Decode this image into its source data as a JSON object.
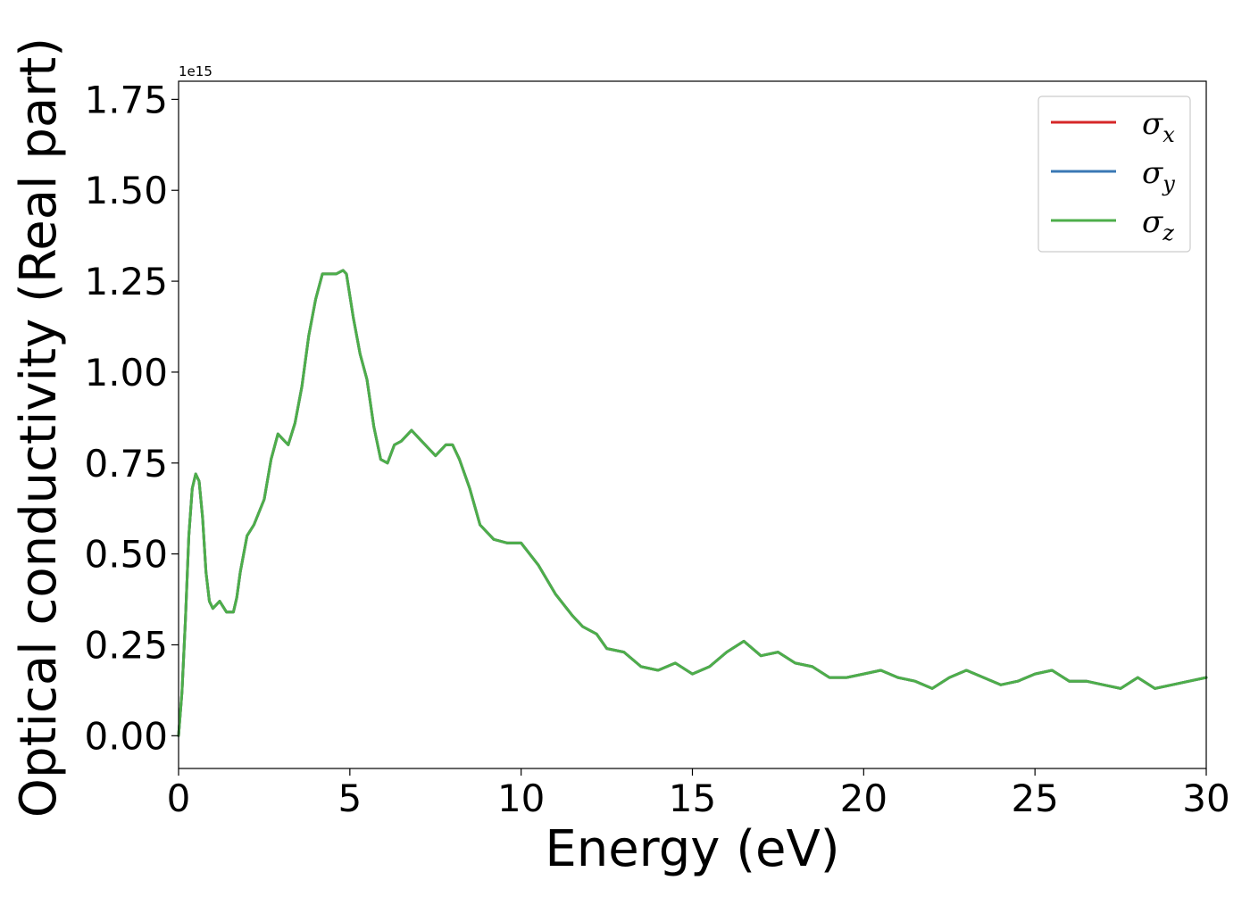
{
  "chart_data": {
    "type": "line",
    "xlabel": "Energy (eV)",
    "ylabel": "Optical conductivity (Real part)",
    "y_offset_label": "1e15",
    "xlim": [
      0,
      30
    ],
    "ylim": [
      -0.09,
      1.8
    ],
    "x_ticks": [
      0,
      5,
      10,
      15,
      20,
      25,
      30
    ],
    "x_tick_labels": [
      "0",
      "5",
      "10",
      "15",
      "20",
      "25",
      "30"
    ],
    "y_ticks": [
      0.0,
      0.25,
      0.5,
      0.75,
      1.0,
      1.25,
      1.5,
      1.75
    ],
    "y_tick_labels": [
      "0.00",
      "0.25",
      "0.50",
      "0.75",
      "1.00",
      "1.25",
      "1.50",
      "1.75"
    ],
    "grid": false,
    "legend_position": "top-right",
    "legend": [
      {
        "base": "σ",
        "sub": "x",
        "color": "#d62728"
      },
      {
        "base": "σ",
        "sub": "y",
        "color": "#3a78b4"
      },
      {
        "base": "σ",
        "sub": "z",
        "color": "#4dae4a"
      }
    ],
    "x": [
      0.0,
      0.1,
      0.2,
      0.3,
      0.4,
      0.5,
      0.6,
      0.7,
      0.8,
      0.9,
      1.0,
      1.2,
      1.4,
      1.6,
      1.7,
      1.8,
      2.0,
      2.2,
      2.5,
      2.7,
      2.9,
      3.0,
      3.2,
      3.4,
      3.6,
      3.8,
      4.0,
      4.2,
      4.4,
      4.6,
      4.8,
      4.9,
      5.1,
      5.3,
      5.5,
      5.7,
      5.9,
      6.1,
      6.3,
      6.5,
      6.7,
      6.8,
      7.0,
      7.3,
      7.5,
      7.8,
      8.0,
      8.2,
      8.5,
      8.8,
      9.2,
      9.6,
      10.0,
      10.5,
      11.0,
      11.5,
      11.8,
      12.2,
      12.5,
      13.0,
      13.5,
      14.0,
      14.5,
      15.0,
      15.5,
      16.0,
      16.5,
      17.0,
      17.5,
      18.0,
      18.5,
      19.0,
      19.5,
      20.0,
      20.5,
      21.0,
      21.5,
      22.0,
      22.5,
      23.0,
      23.5,
      24.0,
      24.5,
      25.0,
      25.5,
      26.0,
      26.5,
      27.0,
      27.5,
      28.0,
      28.5,
      29.0,
      29.5,
      30.0
    ],
    "series": [
      {
        "name": "σx",
        "color": "#d62728",
        "values": [
          0.0,
          0.12,
          0.32,
          0.55,
          0.68,
          0.72,
          0.7,
          0.6,
          0.45,
          0.37,
          0.35,
          0.37,
          0.34,
          0.34,
          0.38,
          0.45,
          0.55,
          0.58,
          0.65,
          0.76,
          0.83,
          0.82,
          0.8,
          0.86,
          0.96,
          1.1,
          1.2,
          1.27,
          1.27,
          1.27,
          1.28,
          1.27,
          1.15,
          1.05,
          0.98,
          0.85,
          0.76,
          0.75,
          0.8,
          0.81,
          0.83,
          0.84,
          0.82,
          0.79,
          0.77,
          0.8,
          0.8,
          0.76,
          0.68,
          0.58,
          0.54,
          0.53,
          0.53,
          0.47,
          0.39,
          0.33,
          0.3,
          0.28,
          0.24,
          0.23,
          0.19,
          0.18,
          0.2,
          0.17,
          0.19,
          0.23,
          0.26,
          0.22,
          0.23,
          0.2,
          0.19,
          0.16,
          0.16,
          0.17,
          0.18,
          0.16,
          0.15,
          0.13,
          0.16,
          0.18,
          0.16,
          0.14,
          0.15,
          0.17,
          0.18,
          0.15,
          0.15,
          0.14,
          0.13,
          0.16,
          0.13,
          0.14,
          0.15,
          0.16
        ]
      },
      {
        "name": "σy",
        "color": "#3a78b4",
        "values": [
          0.0,
          0.12,
          0.32,
          0.55,
          0.68,
          0.72,
          0.7,
          0.6,
          0.45,
          0.37,
          0.35,
          0.37,
          0.34,
          0.34,
          0.38,
          0.45,
          0.55,
          0.58,
          0.65,
          0.76,
          0.83,
          0.82,
          0.8,
          0.86,
          0.96,
          1.1,
          1.2,
          1.27,
          1.27,
          1.27,
          1.28,
          1.27,
          1.15,
          1.05,
          0.98,
          0.85,
          0.76,
          0.75,
          0.8,
          0.81,
          0.83,
          0.84,
          0.82,
          0.79,
          0.77,
          0.8,
          0.8,
          0.76,
          0.68,
          0.58,
          0.54,
          0.53,
          0.53,
          0.47,
          0.39,
          0.33,
          0.3,
          0.28,
          0.24,
          0.23,
          0.19,
          0.18,
          0.2,
          0.17,
          0.19,
          0.23,
          0.26,
          0.22,
          0.23,
          0.2,
          0.19,
          0.16,
          0.16,
          0.17,
          0.18,
          0.16,
          0.15,
          0.13,
          0.16,
          0.18,
          0.16,
          0.14,
          0.15,
          0.17,
          0.18,
          0.15,
          0.15,
          0.14,
          0.13,
          0.16,
          0.13,
          0.14,
          0.15,
          0.16
        ]
      },
      {
        "name": "σz",
        "color": "#4dae4a",
        "values": [
          0.0,
          0.12,
          0.32,
          0.55,
          0.68,
          0.72,
          0.7,
          0.6,
          0.45,
          0.37,
          0.35,
          0.37,
          0.34,
          0.34,
          0.38,
          0.45,
          0.55,
          0.58,
          0.65,
          0.76,
          0.83,
          0.82,
          0.8,
          0.86,
          0.96,
          1.1,
          1.2,
          1.27,
          1.27,
          1.27,
          1.28,
          1.27,
          1.15,
          1.05,
          0.98,
          0.85,
          0.76,
          0.75,
          0.8,
          0.81,
          0.83,
          0.84,
          0.82,
          0.79,
          0.77,
          0.8,
          0.8,
          0.76,
          0.68,
          0.58,
          0.54,
          0.53,
          0.53,
          0.47,
          0.39,
          0.33,
          0.3,
          0.28,
          0.24,
          0.23,
          0.19,
          0.18,
          0.2,
          0.17,
          0.19,
          0.23,
          0.26,
          0.22,
          0.23,
          0.2,
          0.19,
          0.16,
          0.16,
          0.17,
          0.18,
          0.16,
          0.15,
          0.13,
          0.16,
          0.18,
          0.16,
          0.14,
          0.15,
          0.17,
          0.18,
          0.15,
          0.15,
          0.14,
          0.13,
          0.16,
          0.13,
          0.14,
          0.15,
          0.16
        ]
      }
    ]
  }
}
